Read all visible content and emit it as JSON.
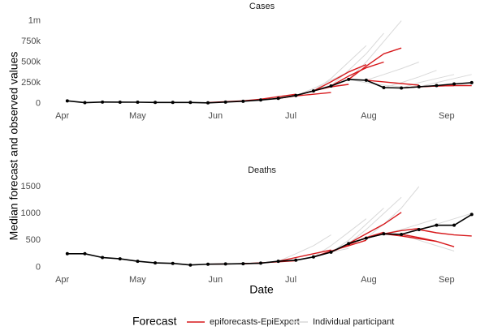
{
  "y_label": "Median forecast and observed values",
  "x_label": "Date",
  "legend": {
    "title": "Forecast"
  },
  "chart_data": [
    {
      "type": "line",
      "title": "Cases",
      "xlim": [
        -7,
        166
      ],
      "xticks": [
        {
          "value": 0,
          "label": "Apr"
        },
        {
          "value": 30,
          "label": "May"
        },
        {
          "value": 61,
          "label": "Jun"
        },
        {
          "value": 91,
          "label": "Jul"
        },
        {
          "value": 122,
          "label": "Aug"
        },
        {
          "value": 153,
          "label": "Sep"
        }
      ],
      "ylim": [
        -75000,
        1075000
      ],
      "yticks": [
        0,
        {
          "value": 250000,
          "label": "250k"
        },
        {
          "value": 500000,
          "label": "500k"
        },
        {
          "value": 750000,
          "label": "750k"
        },
        {
          "value": 1000000,
          "label": "1m"
        }
      ],
      "series": [
        {
          "name": "epiforecasts-EpiExpert",
          "color": "#d7191c",
          "lines": [
            {
              "x": [
                58,
                65,
                72,
                79
              ],
              "values": [
                10000,
                20000,
                30000,
                40000
              ]
            },
            {
              "x": [
                72,
                79,
                86,
                93
              ],
              "values": [
                30000,
                50000,
                80000,
                110000
              ]
            },
            {
              "x": [
                86,
                93,
                100,
                107
              ],
              "values": [
                60000,
                90000,
                110000,
                130000
              ]
            },
            {
              "x": [
                93,
                100,
                107,
                114
              ],
              "values": [
                95000,
                150000,
                200000,
                230000
              ]
            },
            {
              "x": [
                100,
                107,
                114,
                121
              ],
              "values": [
                150000,
                260000,
                380000,
                470000
              ]
            },
            {
              "x": [
                107,
                114,
                121,
                128
              ],
              "values": [
                210000,
                330000,
                430000,
                500000
              ]
            },
            {
              "x": [
                114,
                121,
                128,
                135
              ],
              "values": [
                290000,
                450000,
                600000,
                670000
              ]
            },
            {
              "x": [
                121,
                128,
                135,
                142
              ],
              "values": [
                280000,
                260000,
                240000,
                220000
              ]
            },
            {
              "x": [
                135,
                142,
                149,
                156
              ],
              "values": [
                185000,
                200000,
                210000,
                215000
              ]
            },
            {
              "x": [
                142,
                149,
                156,
                163
              ],
              "values": [
                200000,
                210000,
                215000,
                215000
              ]
            }
          ]
        },
        {
          "name": "Individual participant",
          "color": "#d9d9d9",
          "lines": [
            {
              "x": [
                86,
                93,
                100,
                107
              ],
              "values": [
                60000,
                100000,
                160000,
                220000
              ]
            },
            {
              "x": [
                93,
                100,
                107,
                114
              ],
              "values": [
                95000,
                180000,
                280000,
                380000
              ]
            },
            {
              "x": [
                100,
                107,
                114,
                121
              ],
              "values": [
                150000,
                300000,
                500000,
                700000
              ]
            },
            {
              "x": [
                107,
                114,
                121,
                128
              ],
              "values": [
                210000,
                400000,
                600000,
                850000
              ]
            },
            {
              "x": [
                114,
                121,
                128,
                135
              ],
              "values": [
                290000,
                500000,
                750000,
                1000000
              ]
            },
            {
              "x": [
                114,
                121,
                128,
                135
              ],
              "values": [
                290000,
                250000,
                220000,
                200000
              ]
            },
            {
              "x": [
                121,
                128,
                135,
                142
              ],
              "values": [
                280000,
                350000,
                420000,
                500000
              ]
            },
            {
              "x": [
                128,
                135,
                142,
                149
              ],
              "values": [
                190000,
                250000,
                320000,
                400000
              ]
            },
            {
              "x": [
                135,
                142,
                149,
                156
              ],
              "values": [
                185000,
                250000,
                300000,
                350000
              ]
            },
            {
              "x": [
                142,
                149,
                156,
                163
              ],
              "values": [
                200000,
                250000,
                300000,
                350000
              ]
            }
          ]
        }
      ],
      "observed": {
        "color": "#000000",
        "x": [
          2,
          9,
          16,
          23,
          30,
          37,
          44,
          51,
          58,
          65,
          72,
          79,
          86,
          93,
          100,
          107,
          114,
          121,
          128,
          135,
          142,
          149,
          156,
          163
        ],
        "values": [
          30000,
          8000,
          15000,
          14000,
          13000,
          11000,
          11000,
          11000,
          6000,
          15000,
          25000,
          40000,
          60000,
          95000,
          150000,
          210000,
          290000,
          280000,
          190000,
          185000,
          200000,
          215000,
          235000,
          250000
        ]
      }
    },
    {
      "type": "line",
      "title": "Deaths",
      "xlim": [
        -7,
        166
      ],
      "xticks": [
        {
          "value": 0,
          "label": "Apr"
        },
        {
          "value": 30,
          "label": "May"
        },
        {
          "value": 61,
          "label": "Jun"
        },
        {
          "value": 91,
          "label": "Jul"
        },
        {
          "value": 122,
          "label": "Aug"
        },
        {
          "value": 153,
          "label": "Sep"
        }
      ],
      "ylim": [
        -130,
        1620
      ],
      "yticks": [
        0,
        500,
        1000,
        1500
      ],
      "series": [
        {
          "name": "epiforecasts-EpiExpert",
          "color": "#d7191c",
          "lines": [
            {
              "x": [
                58,
                65,
                72,
                79
              ],
              "values": [
                55,
                60,
                65,
                70
              ]
            },
            {
              "x": [
                72,
                79,
                86,
                93
              ],
              "values": [
                65,
                80,
                100,
                120
              ]
            },
            {
              "x": [
                86,
                93,
                100,
                107
              ],
              "values": [
                110,
                180,
                250,
                320
              ]
            },
            {
              "x": [
                100,
                107,
                114,
                121
              ],
              "values": [
                190,
                300,
                400,
                500
              ]
            },
            {
              "x": [
                107,
                114,
                121,
                128
              ],
              "values": [
                280,
                420,
                550,
                650
              ]
            },
            {
              "x": [
                114,
                121,
                128,
                135
              ],
              "values": [
                440,
                620,
                800,
                1020
              ]
            },
            {
              "x": [
                121,
                128,
                135,
                142
              ],
              "values": [
                540,
                620,
                680,
                720
              ]
            },
            {
              "x": [
                128,
                135,
                142,
                149
              ],
              "values": [
                620,
                580,
                530,
                480
              ]
            },
            {
              "x": [
                135,
                142,
                149,
                156
              ],
              "values": [
                610,
                550,
                480,
                380
              ]
            },
            {
              "x": [
                142,
                149,
                156,
                163
              ],
              "values": [
                700,
                640,
                600,
                580
              ]
            }
          ]
        },
        {
          "name": "Individual participant",
          "color": "#d9d9d9",
          "lines": [
            {
              "x": [
                86,
                93,
                100,
                107
              ],
              "values": [
                110,
                250,
                400,
                600
              ]
            },
            {
              "x": [
                93,
                100,
                107,
                114
              ],
              "values": [
                130,
                200,
                280,
                350
              ]
            },
            {
              "x": [
                100,
                107,
                114,
                121
              ],
              "values": [
                190,
                400,
                650,
                900
              ]
            },
            {
              "x": [
                107,
                114,
                121,
                128
              ],
              "values": [
                280,
                500,
                800,
                1100
              ]
            },
            {
              "x": [
                114,
                121,
                128,
                135
              ],
              "values": [
                440,
                700,
                1000,
                1300
              ]
            },
            {
              "x": [
                121,
                128,
                135,
                142
              ],
              "values": [
                540,
                800,
                1100,
                1500
              ]
            },
            {
              "x": [
                128,
                135,
                142,
                149
              ],
              "values": [
                620,
                700,
                800,
                900
              ]
            },
            {
              "x": [
                135,
                142,
                149,
                156
              ],
              "values": [
                610,
                500,
                400,
                300
              ]
            },
            {
              "x": [
                142,
                149,
                156,
                163
              ],
              "values": [
                700,
                800,
                900,
                1000
              ]
            }
          ]
        }
      ],
      "observed": {
        "color": "#000000",
        "x": [
          2,
          9,
          16,
          23,
          30,
          37,
          44,
          51,
          58,
          65,
          72,
          79,
          86,
          93,
          100,
          107,
          114,
          121,
          128,
          135,
          142,
          149,
          156,
          163
        ],
        "values": [
          250,
          250,
          180,
          155,
          110,
          80,
          70,
          40,
          55,
          60,
          65,
          75,
          110,
          130,
          190,
          280,
          440,
          540,
          620,
          610,
          700,
          780,
          780,
          980
        ]
      }
    }
  ]
}
